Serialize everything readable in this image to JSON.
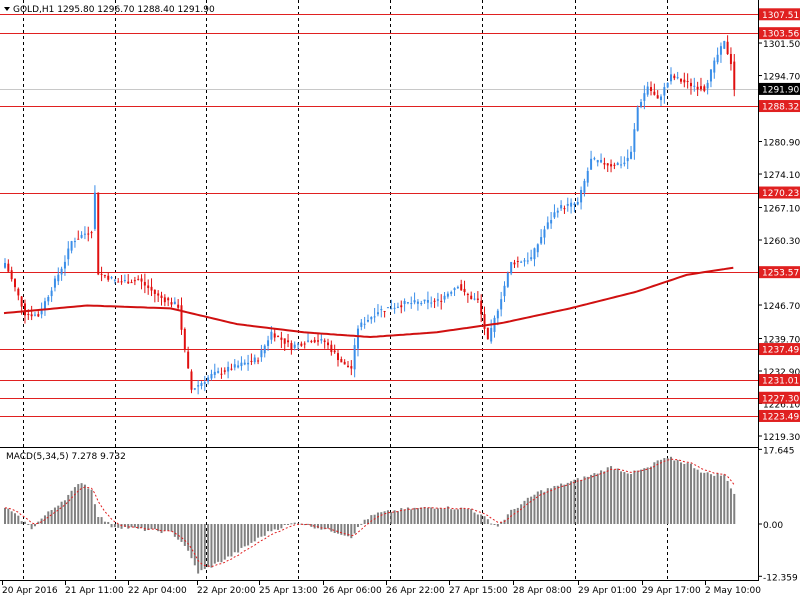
{
  "window": {
    "symbol_info": "GOLD,H1  1295.80 1296.70 1288.40 1291.90",
    "macd_info": "MACD(5,34,5) 7.278 9.732"
  },
  "colors": {
    "bull": "#3a8ee8",
    "bear": "#e01010",
    "ma": "#d01010",
    "level_line": "#e02020",
    "level_tag": "#e02020",
    "current_tag": "#000000",
    "macd_hist": "#808080",
    "macd_signal": "#e02020"
  },
  "chart_data": [
    {
      "type": "candlestick",
      "symbol": "GOLD",
      "timeframe": "H1",
      "ylim": [
        1217.0,
        1310.5
      ],
      "y_ticks": [
        1301.5,
        1294.7,
        1287.9,
        1280.9,
        1274.1,
        1267.1,
        1260.3,
        1246.7,
        1239.7,
        1232.9,
        1226.1,
        1219.3
      ],
      "y_tick_labels": [
        "1301.50",
        "1294.70",
        "1287.90",
        "1280.90",
        "1274.10",
        "1267.10",
        "1260.30",
        "1246.70",
        "1239.70",
        "1232.90",
        "1226.10",
        "1219.30"
      ],
      "x_labels": [
        "20 Apr 2016",
        "21 Apr 11:00",
        "22 Apr 04:00",
        "22 Apr 20:00",
        "25 Apr 13:00",
        "26 Apr 06:00",
        "26 Apr 22:00",
        "27 Apr 15:00",
        "28 Apr 08:00",
        "29 Apr 01:00",
        "29 Apr 17:00",
        "2 May 10:00"
      ],
      "current_price": 1291.9,
      "current_price_label": "1291.90",
      "levels": [
        {
          "value": 1307.51,
          "label": "1307.51"
        },
        {
          "value": 1303.56,
          "label": "1303.56"
        },
        {
          "value": 1288.32,
          "label": "1288.32"
        },
        {
          "value": 1270.23,
          "label": "1270.23"
        },
        {
          "value": 1253.57,
          "label": "1253.57"
        },
        {
          "value": 1237.49,
          "label": "1237.49"
        },
        {
          "value": 1231.01,
          "label": "1231.01"
        },
        {
          "value": 1227.3,
          "label": "1227.30"
        },
        {
          "value": 1223.49,
          "label": "1223.49"
        }
      ],
      "anchors": [
        [
          0,
          1255.5
        ],
        [
          6,
          1245.0
        ],
        [
          10,
          1244.5
        ],
        [
          18,
          1256.0
        ],
        [
          20,
          1260.0
        ],
        [
          26,
          1262.5
        ],
        [
          27,
          1270.0
        ],
        [
          28,
          1253.5
        ],
        [
          34,
          1251.5
        ],
        [
          40,
          1252.0
        ],
        [
          46,
          1248.5
        ],
        [
          49,
          1247.5
        ],
        [
          52,
          1246.5
        ],
        [
          54,
          1237.0
        ],
        [
          56,
          1229.0
        ],
        [
          62,
          1232.0
        ],
        [
          70,
          1234.0
        ],
        [
          76,
          1235.5
        ],
        [
          80,
          1241.0
        ],
        [
          86,
          1238.0
        ],
        [
          92,
          1239.5
        ],
        [
          96,
          1239.0
        ],
        [
          102,
          1234.0
        ],
        [
          104,
          1233.5
        ],
        [
          106,
          1242.0
        ],
        [
          112,
          1245.5
        ],
        [
          120,
          1247.0
        ],
        [
          130,
          1247.5
        ],
        [
          136,
          1251.0
        ],
        [
          138,
          1249.0
        ],
        [
          142,
          1247.5
        ],
        [
          145,
          1239.0
        ],
        [
          148,
          1246.0
        ],
        [
          152,
          1255.5
        ],
        [
          158,
          1256.5
        ],
        [
          162,
          1262.5
        ],
        [
          166,
          1267.0
        ],
        [
          172,
          1268.0
        ],
        [
          176,
          1277.0
        ],
        [
          182,
          1276.0
        ],
        [
          186,
          1276.5
        ],
        [
          188,
          1278.5
        ],
        [
          190,
          1288.0
        ],
        [
          193,
          1292.5
        ],
        [
          196,
          1289.5
        ],
        [
          200,
          1294.5
        ],
        [
          205,
          1293.0
        ],
        [
          210,
          1292.0
        ],
        [
          214,
          1299.0
        ],
        [
          216,
          1301.5
        ],
        [
          218,
          1297.5
        ],
        [
          219,
          1291.9
        ]
      ],
      "ma_curve": [
        [
          0,
          1245.0
        ],
        [
          25,
          1246.6
        ],
        [
          50,
          1246.0
        ],
        [
          70,
          1242.7
        ],
        [
          90,
          1241.0
        ],
        [
          110,
          1240.0
        ],
        [
          130,
          1241.0
        ],
        [
          150,
          1243.0
        ],
        [
          170,
          1246.0
        ],
        [
          190,
          1249.5
        ],
        [
          205,
          1253.0
        ],
        [
          219,
          1254.5
        ]
      ]
    },
    {
      "type": "bar",
      "name": "MACD(5,34,5)",
      "ylim": [
        -13.0,
        18.2
      ],
      "y_ticks": [
        17.645,
        0.0,
        -12.359
      ],
      "y_tick_labels": [
        "17.645",
        "0.00",
        "-12.359"
      ],
      "main": 7.278,
      "signal": 9.732,
      "anchors": [
        [
          0,
          4.0
        ],
        [
          5,
          1.0
        ],
        [
          8,
          -1.0
        ],
        [
          12,
          2.0
        ],
        [
          18,
          6.0
        ],
        [
          23,
          10.0
        ],
        [
          26,
          8.0
        ],
        [
          28,
          2.0
        ],
        [
          32,
          -0.5
        ],
        [
          38,
          -1.0
        ],
        [
          44,
          -1.5
        ],
        [
          50,
          -2.0
        ],
        [
          54,
          -5.0
        ],
        [
          58,
          -11.5
        ],
        [
          62,
          -10.0
        ],
        [
          68,
          -7.5
        ],
        [
          72,
          -5.5
        ],
        [
          76,
          -3.5
        ],
        [
          80,
          -1.5
        ],
        [
          88,
          0.5
        ],
        [
          92,
          -0.5
        ],
        [
          100,
          -2.0
        ],
        [
          104,
          -3.0
        ],
        [
          108,
          1.0
        ],
        [
          112,
          2.5
        ],
        [
          120,
          3.5
        ],
        [
          130,
          4.0
        ],
        [
          140,
          3.5
        ],
        [
          145,
          1.0
        ],
        [
          148,
          -0.5
        ],
        [
          152,
          3.0
        ],
        [
          160,
          7.5
        ],
        [
          168,
          9.5
        ],
        [
          176,
          11.5
        ],
        [
          182,
          13.5
        ],
        [
          188,
          12.0
        ],
        [
          194,
          13.5
        ],
        [
          196,
          15.0
        ],
        [
          200,
          15.5
        ],
        [
          206,
          14.0
        ],
        [
          210,
          12.0
        ],
        [
          216,
          11.5
        ],
        [
          219,
          7.3
        ]
      ]
    }
  ]
}
